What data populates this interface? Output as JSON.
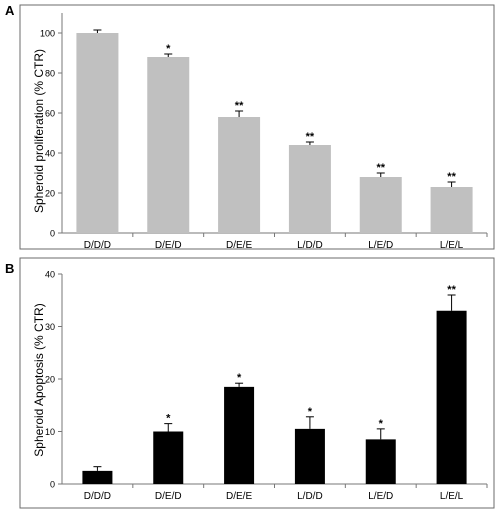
{
  "chart_data": [
    {
      "panel_label": "A",
      "type": "bar",
      "categories": [
        "D/D/D",
        "D/E/D",
        "D/E/E",
        "L/D/D",
        "L/E/D",
        "L/E/L"
      ],
      "values": [
        100,
        88,
        58,
        44,
        28,
        23
      ],
      "errors": [
        1.5,
        1.5,
        3,
        1.5,
        2,
        2.5
      ],
      "significance": [
        "",
        "*",
        "**",
        "**",
        "**",
        "**"
      ],
      "ylabel": "Spheroid  proliferation (% CTR)",
      "xlabel": "",
      "title": "",
      "ylim": [
        0,
        110
      ],
      "yticks": [
        0,
        20,
        40,
        60,
        80,
        100
      ],
      "bar_color": "#c0c0c0",
      "grid": false
    },
    {
      "panel_label": "B",
      "type": "bar",
      "categories": [
        "D/D/D",
        "D/E/D",
        "D/E/E",
        "L/D/D",
        "L/E/D",
        "L/E/L"
      ],
      "values": [
        2.5,
        10,
        18.5,
        10.5,
        8.5,
        33
      ],
      "errors": [
        0.8,
        1.5,
        0.7,
        2.3,
        2,
        3
      ],
      "significance": [
        "",
        "*",
        "*",
        "*",
        "*",
        "**"
      ],
      "ylabel": "Spheroid Apoptosis (% CTR)",
      "xlabel": "",
      "title": "",
      "ylim": [
        0,
        40
      ],
      "yticks": [
        0,
        10,
        20,
        30,
        40
      ],
      "bar_color": "#000000",
      "grid": false
    }
  ]
}
